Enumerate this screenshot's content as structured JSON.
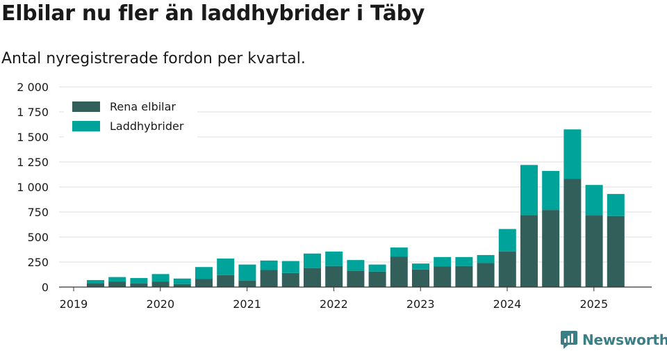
{
  "header": {
    "title": "Elbilar nu fler än laddhybrider i Täby",
    "subtitle": "Antal nyregistrerade fordon per kvartal."
  },
  "brand": {
    "name": "Newsworthy",
    "color": "#3a7f86"
  },
  "chart_data": {
    "type": "bar",
    "stacked": true,
    "title": "",
    "xlabel": "",
    "ylabel": "",
    "ylim": [
      0,
      2000
    ],
    "y_ticks": [
      0,
      250,
      500,
      750,
      1000,
      1250,
      1500,
      1750,
      2000
    ],
    "y_tick_labels": [
      "0",
      "250",
      "500",
      "750",
      "1 000",
      "1 250",
      "1 500",
      "1 750",
      "2 000"
    ],
    "x_tick_labels": [
      "2019",
      "2020",
      "2021",
      "2022",
      "2023",
      "2024",
      "2025"
    ],
    "grid": true,
    "legend_position": "top-left",
    "categories": [
      "2019 Q2",
      "2019 Q3",
      "2019 Q4",
      "2020 Q1",
      "2020 Q2",
      "2020 Q3",
      "2020 Q4",
      "2021 Q1",
      "2021 Q2",
      "2021 Q3",
      "2021 Q4",
      "2022 Q1",
      "2022 Q2",
      "2022 Q3",
      "2022 Q4",
      "2023 Q1",
      "2023 Q2",
      "2023 Q3",
      "2023 Q4",
      "2024 Q1",
      "2024 Q2",
      "2024 Q3",
      "2024 Q4",
      "2025 Q1",
      "2025 Q2"
    ],
    "series": [
      {
        "name": "Rena elbilar",
        "color": "#335f5a",
        "values": [
          40,
          55,
          35,
          55,
          30,
          80,
          120,
          65,
          170,
          140,
          190,
          210,
          160,
          155,
          305,
          175,
          205,
          210,
          240,
          355,
          720,
          770,
          1080,
          715,
          710
        ]
      },
      {
        "name": "Laddhybrider",
        "color": "#00a399",
        "values": [
          30,
          45,
          55,
          75,
          55,
          120,
          165,
          160,
          95,
          120,
          145,
          145,
          110,
          70,
          90,
          60,
          95,
          90,
          80,
          225,
          500,
          390,
          495,
          305,
          220
        ]
      }
    ]
  }
}
